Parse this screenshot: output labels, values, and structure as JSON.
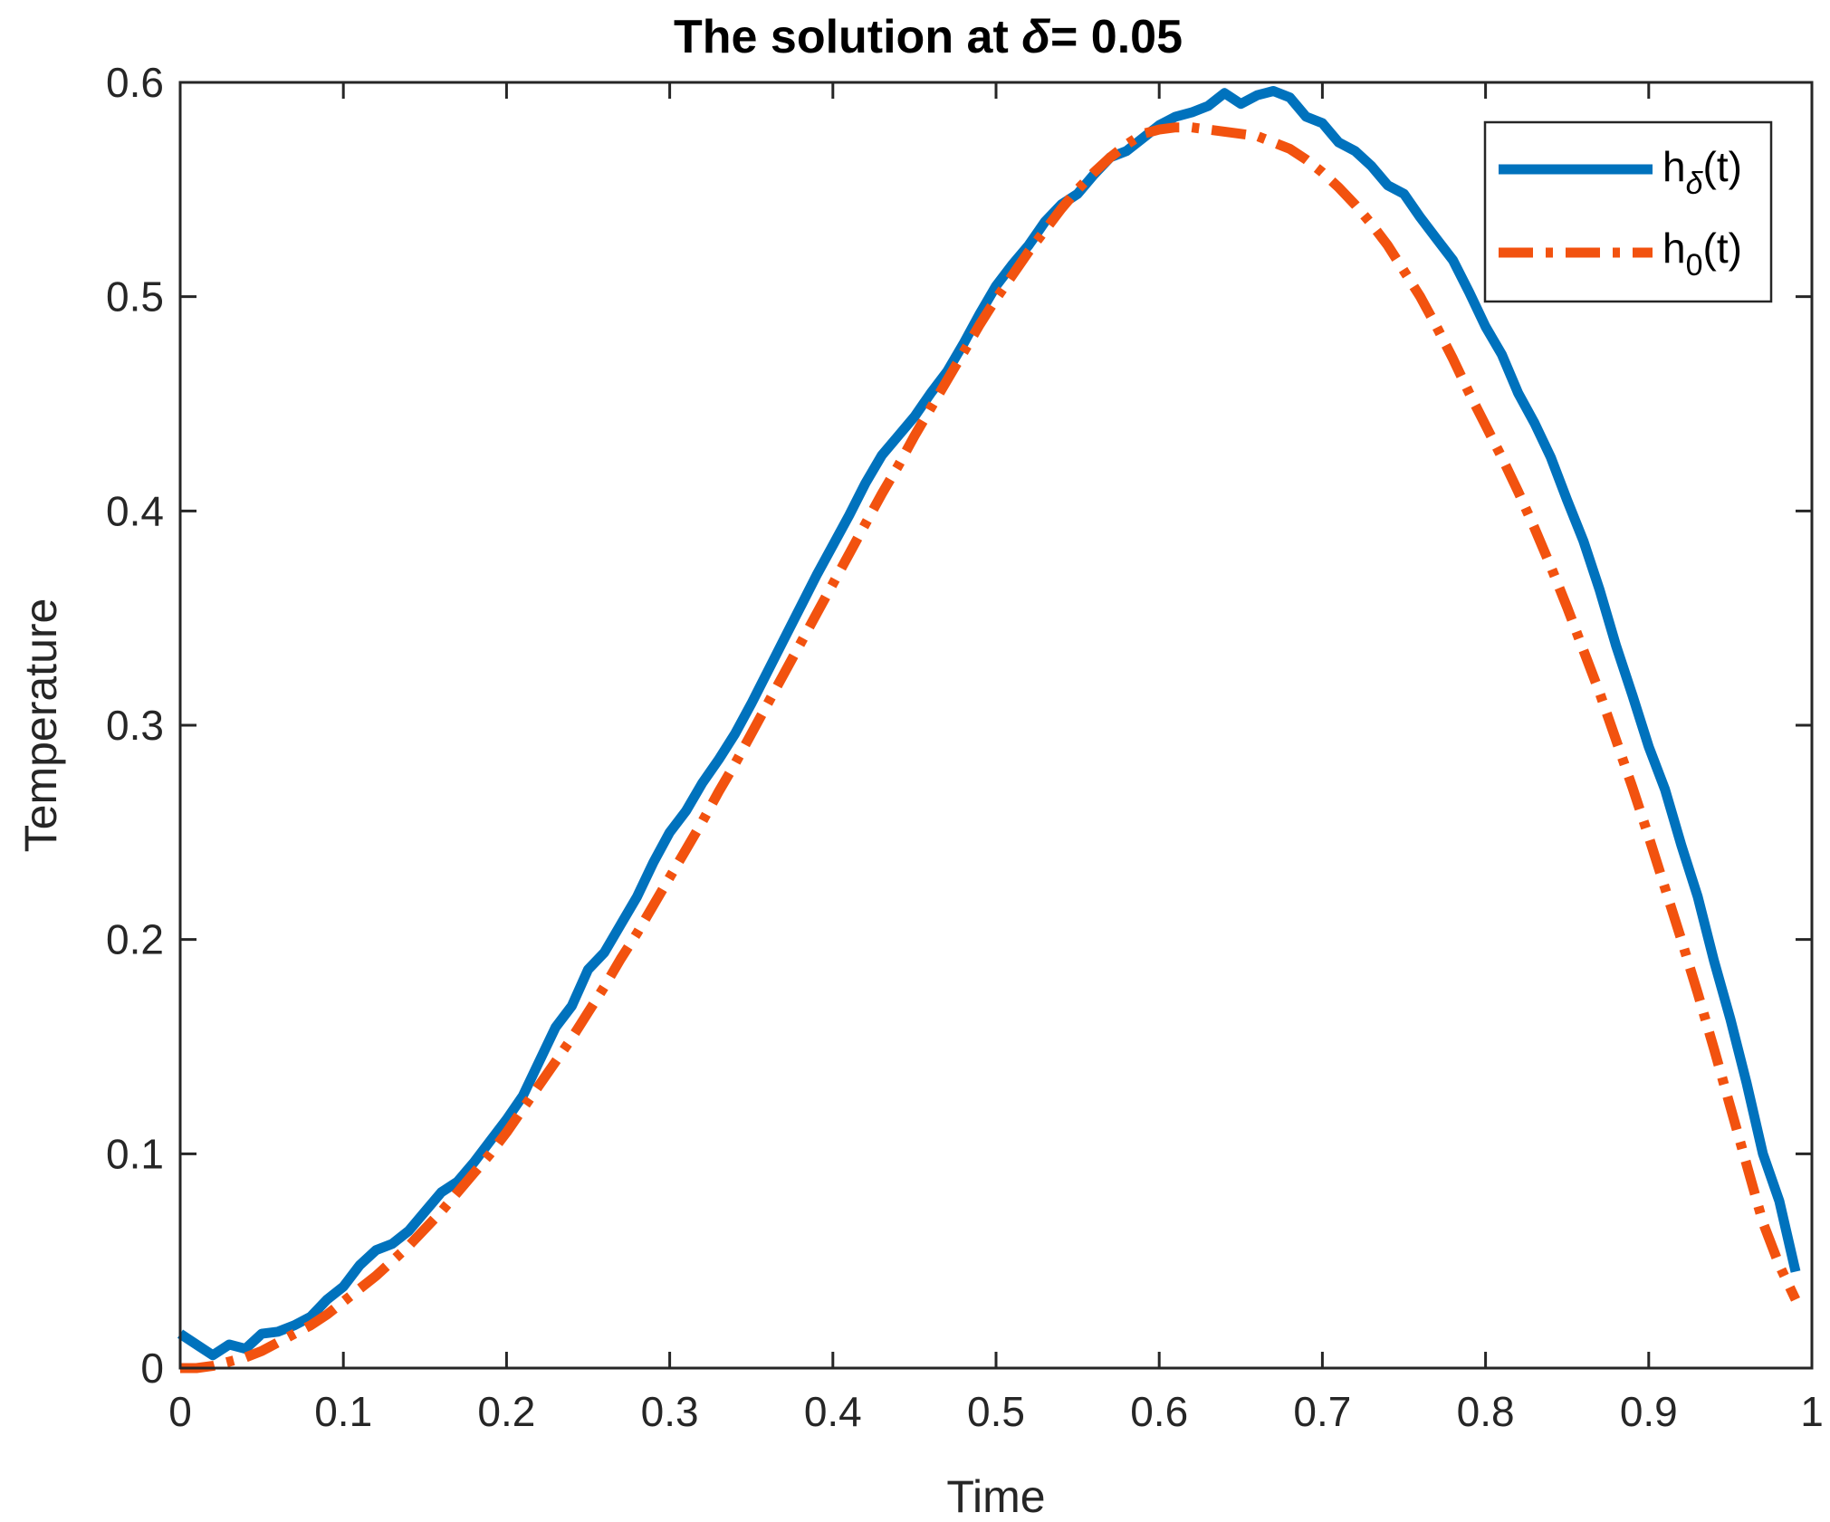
{
  "chart_data": {
    "type": "line",
    "title": {
      "prefix": "The solution at ",
      "symbol": "δ",
      "suffix": "= 0.05"
    },
    "xlabel": "Time",
    "ylabel": "Temperature",
    "xlim": [
      0,
      1
    ],
    "ylim": [
      0,
      0.6
    ],
    "x_ticks": [
      0,
      0.1,
      0.2,
      0.3,
      0.4,
      0.5,
      0.6,
      0.7,
      0.8,
      0.9,
      1
    ],
    "x_tick_labels": [
      "0",
      "0.1",
      "0.2",
      "0.3",
      "0.4",
      "0.5",
      "0.6",
      "0.7",
      "0.8",
      "0.9",
      "1"
    ],
    "y_ticks": [
      0,
      0.1,
      0.2,
      0.3,
      0.4,
      0.5,
      0.6
    ],
    "y_tick_labels": [
      "0",
      "0.1",
      "0.2",
      "0.3",
      "0.4",
      "0.5",
      "0.6"
    ],
    "grid": false,
    "legend_position": "top-right",
    "series": [
      {
        "name": "hδ(t)",
        "legend_base": "h",
        "legend_sub": "δ",
        "legend_tail": "(t)",
        "color": "#0072BD",
        "style": "solid",
        "x": [
          0,
          0.01,
          0.02,
          0.03,
          0.04,
          0.05,
          0.06,
          0.07,
          0.08,
          0.09,
          0.1,
          0.11,
          0.12,
          0.13,
          0.14,
          0.15,
          0.16,
          0.17,
          0.18,
          0.19,
          0.2,
          0.21,
          0.22,
          0.23,
          0.24,
          0.25,
          0.26,
          0.27,
          0.28,
          0.29,
          0.3,
          0.31,
          0.32,
          0.33,
          0.34,
          0.35,
          0.36,
          0.37,
          0.38,
          0.39,
          0.4,
          0.41,
          0.42,
          0.43,
          0.44,
          0.45,
          0.46,
          0.47,
          0.48,
          0.49,
          0.5,
          0.51,
          0.52,
          0.53,
          0.54,
          0.55,
          0.56,
          0.57,
          0.58,
          0.59,
          0.6,
          0.61,
          0.62,
          0.63,
          0.64,
          0.65,
          0.66,
          0.67,
          0.68,
          0.69,
          0.7,
          0.71,
          0.72,
          0.73,
          0.74,
          0.75,
          0.76,
          0.77,
          0.78,
          0.79,
          0.8,
          0.81,
          0.82,
          0.83,
          0.84,
          0.85,
          0.86,
          0.87,
          0.88,
          0.89,
          0.9,
          0.91,
          0.92,
          0.93,
          0.94,
          0.95,
          0.96,
          0.97,
          0.98,
          0.99
        ],
        "y": [
          0.016,
          0.011,
          0.006,
          0.011,
          0.009,
          0.016,
          0.017,
          0.02,
          0.024,
          0.032,
          0.038,
          0.048,
          0.055,
          0.058,
          0.064,
          0.073,
          0.082,
          0.087,
          0.096,
          0.106,
          0.116,
          0.127,
          0.143,
          0.159,
          0.169,
          0.186,
          0.194,
          0.207,
          0.22,
          0.236,
          0.25,
          0.26,
          0.273,
          0.284,
          0.296,
          0.31,
          0.325,
          0.34,
          0.355,
          0.37,
          0.384,
          0.398,
          0.413,
          0.426,
          0.435,
          0.444,
          0.455,
          0.465,
          0.478,
          0.492,
          0.505,
          0.515,
          0.524,
          0.535,
          0.543,
          0.548,
          0.557,
          0.565,
          0.568,
          0.574,
          0.58,
          0.584,
          0.586,
          0.589,
          0.595,
          0.59,
          0.594,
          0.596,
          0.593,
          0.584,
          0.581,
          0.572,
          0.568,
          0.561,
          0.552,
          0.548,
          0.537,
          0.527,
          0.517,
          0.502,
          0.486,
          0.473,
          0.455,
          0.441,
          0.425,
          0.405,
          0.386,
          0.363,
          0.337,
          0.314,
          0.29,
          0.27,
          0.244,
          0.22,
          0.19,
          0.163,
          0.133,
          0.1,
          0.078,
          0.045
        ]
      },
      {
        "name": "h0(t)",
        "legend_base": "h",
        "legend_sub": "0",
        "legend_tail": "(t)",
        "color": "#F2520F",
        "style": "dashdot",
        "x": [
          0,
          0.01,
          0.02,
          0.03,
          0.04,
          0.05,
          0.06,
          0.07,
          0.08,
          0.09,
          0.1,
          0.11,
          0.12,
          0.13,
          0.14,
          0.15,
          0.16,
          0.17,
          0.18,
          0.19,
          0.2,
          0.21,
          0.22,
          0.23,
          0.24,
          0.25,
          0.26,
          0.27,
          0.28,
          0.29,
          0.3,
          0.31,
          0.32,
          0.33,
          0.34,
          0.35,
          0.36,
          0.37,
          0.38,
          0.39,
          0.4,
          0.41,
          0.42,
          0.43,
          0.44,
          0.45,
          0.46,
          0.47,
          0.48,
          0.49,
          0.5,
          0.51,
          0.52,
          0.53,
          0.54,
          0.55,
          0.56,
          0.57,
          0.58,
          0.59,
          0.6,
          0.61,
          0.62,
          0.63,
          0.64,
          0.65,
          0.66,
          0.67,
          0.68,
          0.69,
          0.7,
          0.71,
          0.72,
          0.73,
          0.74,
          0.75,
          0.76,
          0.77,
          0.78,
          0.79,
          0.8,
          0.81,
          0.82,
          0.83,
          0.84,
          0.85,
          0.86,
          0.87,
          0.88,
          0.89,
          0.9,
          0.91,
          0.92,
          0.93,
          0.94,
          0.95,
          0.96,
          0.97,
          0.98,
          0.99
        ],
        "y": [
          0.0,
          0.0,
          0.001,
          0.003,
          0.005,
          0.008,
          0.012,
          0.016,
          0.02,
          0.025,
          0.031,
          0.037,
          0.043,
          0.05,
          0.057,
          0.065,
          0.073,
          0.082,
          0.091,
          0.1,
          0.11,
          0.121,
          0.132,
          0.143,
          0.154,
          0.166,
          0.178,
          0.191,
          0.203,
          0.216,
          0.229,
          0.242,
          0.255,
          0.269,
          0.282,
          0.296,
          0.31,
          0.324,
          0.338,
          0.352,
          0.366,
          0.38,
          0.394,
          0.408,
          0.421,
          0.435,
          0.448,
          0.461,
          0.474,
          0.487,
          0.499,
          0.51,
          0.521,
          0.531,
          0.541,
          0.55,
          0.558,
          0.565,
          0.571,
          0.576,
          0.578,
          0.579,
          0.579,
          0.578,
          0.577,
          0.576,
          0.575,
          0.572,
          0.569,
          0.564,
          0.558,
          0.551,
          0.543,
          0.534,
          0.524,
          0.512,
          0.5,
          0.486,
          0.471,
          0.455,
          0.44,
          0.425,
          0.409,
          0.392,
          0.374,
          0.355,
          0.335,
          0.315,
          0.293,
          0.271,
          0.248,
          0.224,
          0.2,
          0.175,
          0.149,
          0.122,
          0.095,
          0.068,
          0.048,
          0.032
        ]
      }
    ]
  }
}
